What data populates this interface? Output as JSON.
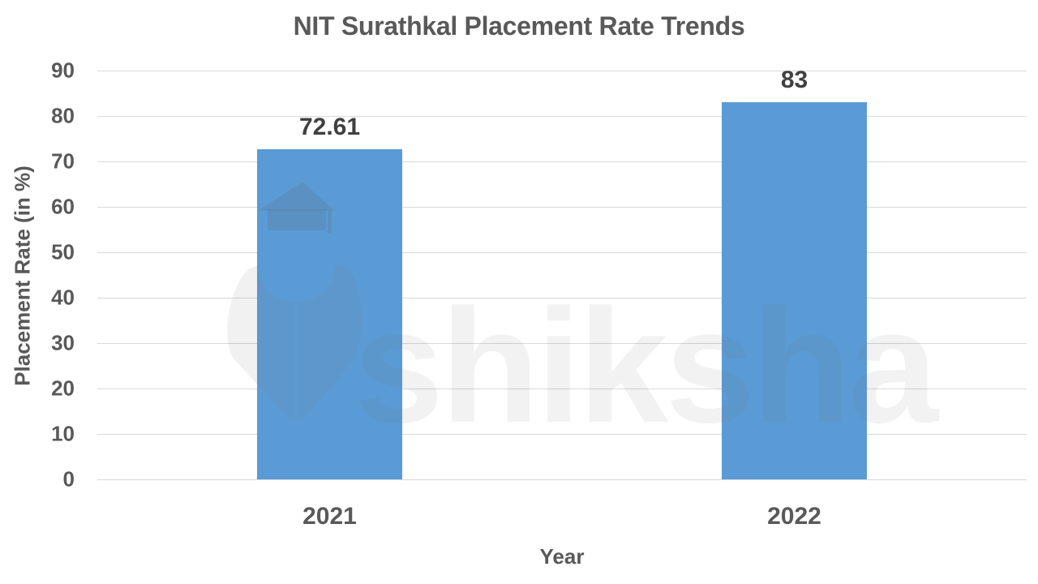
{
  "chart_data": {
    "type": "bar",
    "title": "NIT Surathkal Placement Rate Trends",
    "xlabel": "Year",
    "ylabel": "Placement Rate (in %)",
    "categories": [
      "2021",
      "2022"
    ],
    "values": [
      72.61,
      83
    ],
    "data_labels": [
      "72.61",
      "83"
    ],
    "ylim": [
      0,
      90
    ],
    "yticks": [
      "0",
      "10",
      "20",
      "30",
      "40",
      "50",
      "60",
      "70",
      "80",
      "90"
    ],
    "grid": true,
    "legend": "none",
    "bar_color": "#5b9bd5"
  },
  "watermark": {
    "text": "shiksha",
    "icon": "graduate-cap-pen-icon"
  }
}
